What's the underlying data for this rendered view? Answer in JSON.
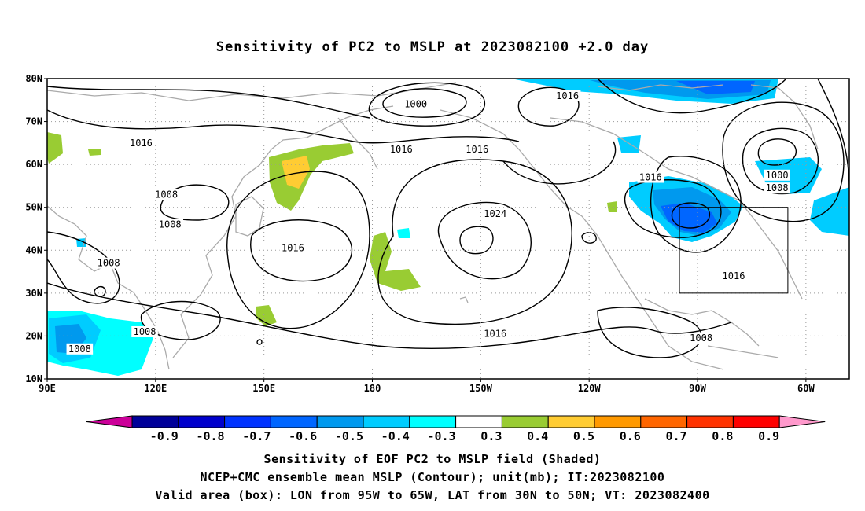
{
  "title": "Sensitivity of PC2 to MSLP at 2023082100 +2.0 day",
  "map": {
    "lat_labels": [
      "80N",
      "70N",
      "60N",
      "50N",
      "40N",
      "30N",
      "20N",
      "10N"
    ],
    "lon_labels": [
      "90E",
      "120E",
      "150E",
      "180",
      "150W",
      "120W",
      "90W",
      "60W"
    ],
    "contour_labels": [
      {
        "text": "1000",
        "lon": -168,
        "lat": 74
      },
      {
        "text": "1016",
        "lon": -126,
        "lat": 76
      },
      {
        "text": "1016",
        "lon": 116,
        "lat": 65
      },
      {
        "text": "1016",
        "lon": -172,
        "lat": 63.5
      },
      {
        "text": "1016",
        "lon": -151,
        "lat": 63.5
      },
      {
        "text": "1016",
        "lon": -103,
        "lat": 57
      },
      {
        "text": "1000",
        "lon": -68,
        "lat": 57.5
      },
      {
        "text": "1008",
        "lon": -68,
        "lat": 54.5
      },
      {
        "text": "1008",
        "lon": 123,
        "lat": 53
      },
      {
        "text": "1024",
        "lon": -146,
        "lat": 48.5
      },
      {
        "text": "1008",
        "lon": 124,
        "lat": 46
      },
      {
        "text": "1016",
        "lon": 158,
        "lat": 40.5
      },
      {
        "text": "1008",
        "lon": 107,
        "lat": 37
      },
      {
        "text": "1016",
        "lon": -80,
        "lat": 34
      },
      {
        "text": "1008",
        "lon": 117,
        "lat": 21
      },
      {
        "text": "1016",
        "lon": -146,
        "lat": 20.5
      },
      {
        "text": "1008",
        "lon": -89,
        "lat": 19.5
      },
      {
        "text": "1008",
        "lon": 99,
        "lat": 17
      }
    ],
    "valid_box": {
      "lon_min": -95,
      "lon_max": -65,
      "lat_min": 30,
      "lat_max": 50
    }
  },
  "colorbar": {
    "labels": [
      "-0.9",
      "-0.8",
      "-0.7",
      "-0.6",
      "-0.5",
      "-0.4",
      "-0.3",
      "0.3",
      "0.4",
      "0.5",
      "0.6",
      "0.7",
      "0.8",
      "0.9"
    ],
    "colors": [
      "#000099",
      "#0000cc",
      "#0033ff",
      "#0066ff",
      "#0099ee",
      "#00ccff",
      "#00ffff",
      "#ffffff",
      "#99cc33",
      "#ffcc33",
      "#ff9900",
      "#ff6600",
      "#ff3300",
      "#ff0000"
    ],
    "low_end_color": "#cc0099",
    "high_end_color": "#ff99cc"
  },
  "captions": [
    "Sensitivity of EOF PC2 to MSLP field (Shaded)",
    "NCEP+CMC ensemble mean MSLP (Contour); unit(mb); IT:2023082100",
    "Valid area (box): LON from 95W to 65W, LAT from 30N to 50N; VT: 2023082400"
  ]
}
